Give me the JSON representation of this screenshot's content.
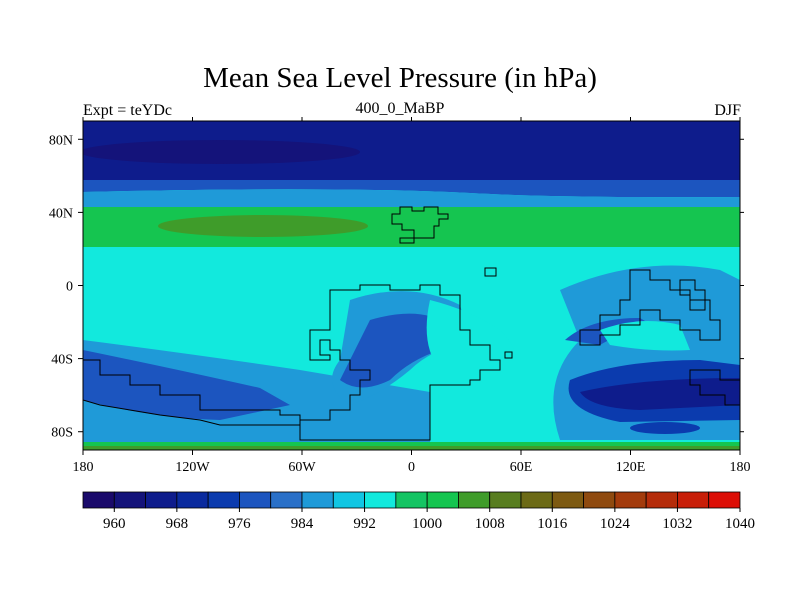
{
  "title": "Mean Sea Level Pressure (in hPa)",
  "subtitle_left": "Expt = teYDc",
  "subtitle_center": "400_0_MaBP",
  "subtitle_right": "DJF",
  "map": {
    "lon_ticks": [
      "180",
      "120W",
      "60W",
      "0",
      "60E",
      "120E",
      "180"
    ],
    "lat_ticks": [
      "80N",
      "40N",
      "0",
      "40S",
      "80S"
    ],
    "lon_tick_values": [
      -180,
      -120,
      -60,
      0,
      60,
      120,
      180
    ],
    "lat_tick_values": [
      80,
      40,
      0,
      -40,
      -80
    ],
    "lon_range": [
      -180,
      180
    ],
    "lat_range": [
      -90,
      90
    ]
  },
  "colorbar": {
    "labels": [
      "960",
      "968",
      "976",
      "984",
      "992",
      "1000",
      "1008",
      "1016",
      "1024",
      "1032",
      "1040"
    ],
    "colors": [
      "#1a0a6b",
      "#14137a",
      "#0e1c8c",
      "#0a2a9e",
      "#0b3bae",
      "#1c55bf",
      "#2a70c8",
      "#1f9ad8",
      "#11c6e3",
      "#12e9dd",
      "#14c463",
      "#15c550",
      "#3f9c2a",
      "#587d1f",
      "#6c6a16",
      "#7d5a12",
      "#8f4a0f",
      "#a33b0c",
      "#b52c0a",
      "#c81e08",
      "#dc0e06"
    ],
    "colors_note": "color ramp"
  }
}
